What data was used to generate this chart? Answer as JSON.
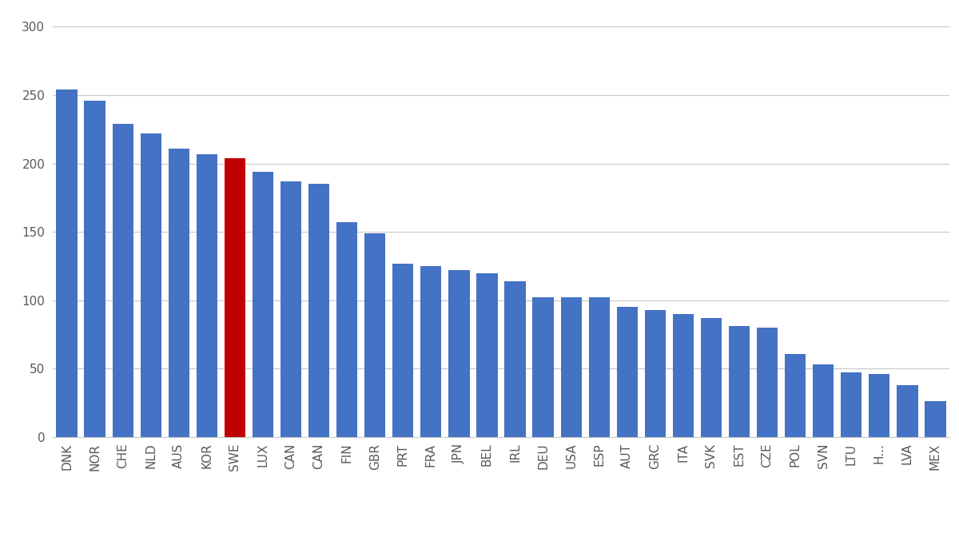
{
  "categories": [
    "DNK",
    "NOR",
    "CHE",
    "NLD",
    "AUS",
    "KOR",
    "SWE",
    "LUX",
    "CAN",
    "CAN",
    "FIN",
    "GBR",
    "PRT",
    "FRA",
    "JPN",
    "BEL",
    "IRL",
    "DEU",
    "USA",
    "ESP",
    "AUT",
    "GRC",
    "ITA",
    "SVK",
    "EST",
    "CZE",
    "POL",
    "SVN",
    "LTU",
    "H...",
    "LVA",
    "MEX"
  ],
  "values": [
    254,
    246,
    229,
    222,
    211,
    207,
    204,
    194,
    187,
    185,
    157,
    149,
    127,
    125,
    122,
    120,
    114,
    102,
    102,
    102,
    95,
    93,
    90,
    87,
    81,
    80,
    61,
    53,
    47,
    46,
    38,
    26
  ],
  "bar_color_default": "#4472C4",
  "bar_color_highlight": "#C00000",
  "highlight_index": 6,
  "ylim": [
    0,
    300
  ],
  "yticks": [
    0,
    50,
    100,
    150,
    200,
    250,
    300
  ],
  "background_color": "#FFFFFF",
  "grid_color": "#C8C8C8",
  "bar_width": 0.75,
  "tick_fontsize": 11,
  "tick_color": "#595959"
}
